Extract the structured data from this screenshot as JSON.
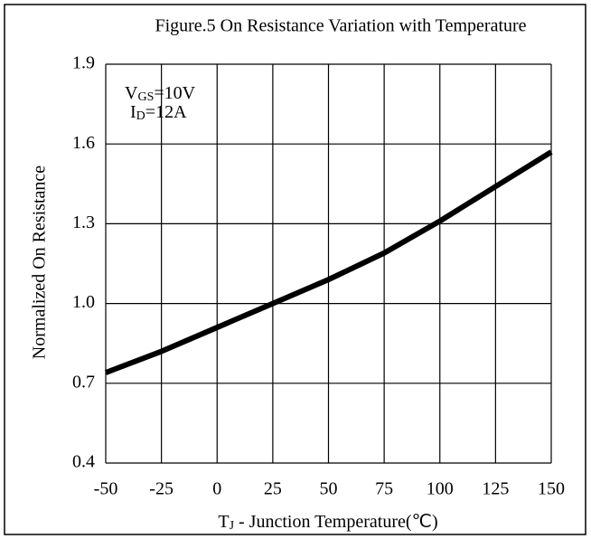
{
  "chart_data": {
    "type": "line",
    "title": "Figure.5 On Resistance Variation with Temperature",
    "x_label": [
      "T",
      "J",
      " - Junction Temperature(℃)"
    ],
    "y_label": "Normalized On Resistance",
    "annotations": [
      [
        "V",
        "GS",
        "=10V"
      ],
      [
        "I",
        "D",
        "=12A"
      ]
    ],
    "x": [
      -50,
      -25,
      0,
      25,
      50,
      75,
      100,
      125,
      150
    ],
    "series": [
      {
        "color": "#000000",
        "values": [
          0.74,
          0.82,
          0.91,
          1.0,
          1.09,
          1.19,
          1.31,
          1.44,
          1.57
        ]
      }
    ],
    "xlim": [
      -50,
      150
    ],
    "xticks": [
      -50,
      -25,
      0,
      25,
      50,
      75,
      100,
      125,
      150
    ],
    "ylim": [
      0.4,
      1.9
    ],
    "yticks": [
      0.4,
      0.7,
      {
        "value": 1,
        "label": "1.0"
      },
      1.3,
      1.6,
      1.9
    ],
    "grid": true
  }
}
